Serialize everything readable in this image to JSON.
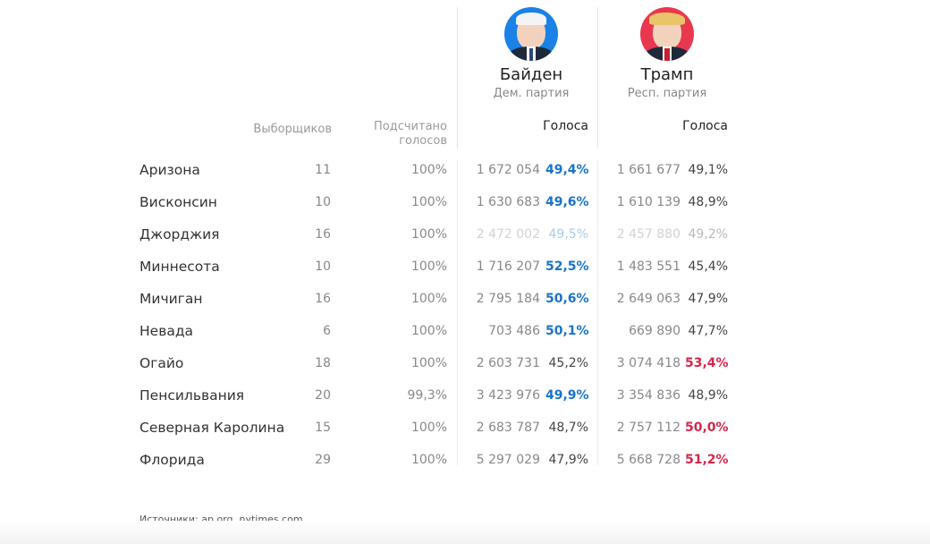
{
  "candidates": {
    "biden": {
      "name": "Байден",
      "party": "Дем. партия",
      "color": "#1a82e6",
      "win_color": "#1a73c8"
    },
    "trump": {
      "name": "Трамп",
      "party": "Респ. партия",
      "color": "#e8384f",
      "win_color": "#d6264b"
    }
  },
  "headers": {
    "electors": "Выборщиков",
    "counted_line1": "Подсчитано",
    "counted_line2": "голосов",
    "votes_biden": "Голоса",
    "votes_trump": "Голоса"
  },
  "rows": [
    {
      "state": "Аризона",
      "electors": "11",
      "counted": "100%",
      "biden_votes": "1 672 054",
      "biden_pct": "49,4%",
      "trump_votes": "1 661 677",
      "trump_pct": "49,1%",
      "winner": "biden"
    },
    {
      "state": "Висконсин",
      "electors": "10",
      "counted": "100%",
      "biden_votes": "1 630 683",
      "biden_pct": "49,6%",
      "trump_votes": "1 610 139",
      "trump_pct": "48,9%",
      "winner": "biden"
    },
    {
      "state": "Джорджия",
      "electors": "16",
      "counted": "100%",
      "biden_votes": "2 472 002",
      "biden_pct": "49,5%",
      "trump_votes": "2 457 880",
      "trump_pct": "49,2%",
      "winner": "none"
    },
    {
      "state": "Миннесота",
      "electors": "10",
      "counted": "100%",
      "biden_votes": "1 716 207",
      "biden_pct": "52,5%",
      "trump_votes": "1 483 551",
      "trump_pct": "45,4%",
      "winner": "biden"
    },
    {
      "state": "Мичиган",
      "electors": "16",
      "counted": "100%",
      "biden_votes": "2 795 184",
      "biden_pct": "50,6%",
      "trump_votes": "2 649 063",
      "trump_pct": "47,9%",
      "winner": "biden"
    },
    {
      "state": "Невада",
      "electors": "6",
      "counted": "100%",
      "biden_votes": "703 486",
      "biden_pct": "50,1%",
      "trump_votes": "669 890",
      "trump_pct": "47,7%",
      "winner": "biden"
    },
    {
      "state": "Огайо",
      "electors": "18",
      "counted": "100%",
      "biden_votes": "2 603 731",
      "biden_pct": "45,2%",
      "trump_votes": "3 074 418",
      "trump_pct": "53,4%",
      "winner": "trump"
    },
    {
      "state": "Пенсильвания",
      "electors": "20",
      "counted": "99,3%",
      "biden_votes": "3 423 976",
      "biden_pct": "49,9%",
      "trump_votes": "3 354 836",
      "trump_pct": "48,9%",
      "winner": "biden"
    },
    {
      "state": "Северная Каролина",
      "electors": "15",
      "counted": "100%",
      "biden_votes": "2 683 787",
      "biden_pct": "48,7%",
      "trump_votes": "2 757 112",
      "trump_pct": "50,0%",
      "winner": "trump"
    },
    {
      "state": "Флорида",
      "electors": "29",
      "counted": "100%",
      "biden_votes": "5 297 029",
      "biden_pct": "47,9%",
      "trump_votes": "5 668 728",
      "trump_pct": "51,2%",
      "winner": "trump"
    }
  ],
  "footer": {
    "source": "Источники: ap.org, nytimes.com"
  }
}
